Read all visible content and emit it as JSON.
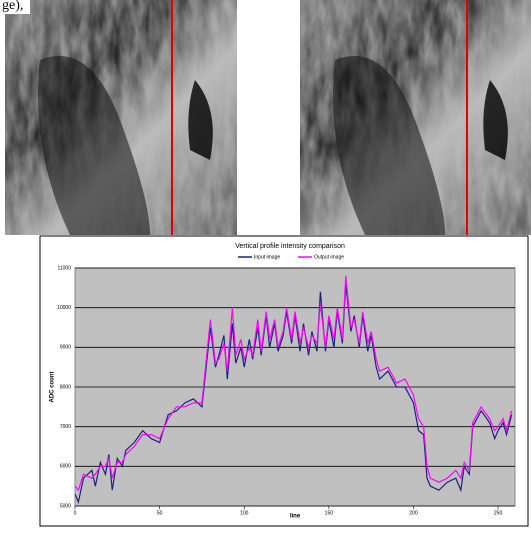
{
  "caption_fragment": "ge),",
  "chart_data": {
    "type": "line",
    "title": "Vertical profile intensity comparison",
    "x_label": "line",
    "y_label": "ADC count",
    "x": [
      0,
      2,
      5,
      10,
      12,
      15,
      18,
      20,
      22,
      25,
      28,
      30,
      35,
      40,
      45,
      50,
      55,
      60,
      65,
      70,
      75,
      80,
      83,
      85,
      88,
      90,
      93,
      95,
      98,
      100,
      103,
      105,
      108,
      110,
      113,
      115,
      118,
      120,
      123,
      125,
      128,
      130,
      133,
      135,
      138,
      140,
      143,
      145,
      148,
      150,
      153,
      155,
      158,
      160,
      163,
      165,
      168,
      170,
      173,
      175,
      178,
      180,
      185,
      190,
      195,
      200,
      203,
      206,
      208,
      210,
      215,
      220,
      225,
      228,
      230,
      233,
      235,
      240,
      245,
      248,
      250,
      253,
      255,
      258
    ],
    "series": [
      {
        "name": "Input image",
        "color": "#1a237e",
        "values": [
          5300,
          5100,
          5700,
          5900,
          5500,
          6100,
          5800,
          6300,
          5400,
          6200,
          6000,
          6400,
          6600,
          6900,
          6700,
          6600,
          7300,
          7400,
          7600,
          7700,
          7500,
          9500,
          8500,
          8800,
          9300,
          8200,
          9600,
          8600,
          9000,
          8500,
          9200,
          8700,
          9500,
          8800,
          9800,
          9000,
          9600,
          8900,
          9300,
          9900,
          9100,
          9800,
          8900,
          9600,
          8800,
          9400,
          8900,
          10400,
          8900,
          9700,
          9000,
          9900,
          9100,
          10600,
          9400,
          9800,
          9000,
          9800,
          8900,
          9300,
          8500,
          8200,
          8400,
          8000,
          8000,
          7600,
          6900,
          6800,
          5700,
          5500,
          5400,
          5600,
          5700,
          5400,
          6000,
          5800,
          7000,
          7400,
          7100,
          6700,
          6900,
          7100,
          6800,
          7300
        ]
      },
      {
        "name": "Output image",
        "color": "#ff00ff",
        "values": [
          5500,
          5400,
          5800,
          5700,
          5800,
          6000,
          6000,
          6200,
          5700,
          6100,
          6100,
          6300,
          6500,
          6800,
          6800,
          6700,
          7200,
          7500,
          7500,
          7600,
          7600,
          9700,
          8600,
          8700,
          9100,
          8400,
          10000,
          8800,
          9200,
          8700,
          9000,
          8800,
          9700,
          8900,
          9900,
          9200,
          9700,
          9000,
          9400,
          10000,
          9200,
          9900,
          9100,
          9500,
          9000,
          9300,
          9100,
          10100,
          9000,
          9800,
          9200,
          10000,
          9200,
          10800,
          9500,
          9700,
          9100,
          9900,
          9100,
          9400,
          8700,
          8400,
          8500,
          8100,
          8200,
          7800,
          7200,
          7000,
          6000,
          5700,
          5600,
          5700,
          5900,
          5700,
          6100,
          5900,
          7100,
          7500,
          7200,
          6900,
          7000,
          7200,
          6900,
          7400
        ]
      }
    ],
    "xlim": [
      0,
      260
    ],
    "xticks": [
      0,
      50,
      100,
      150,
      200,
      250
    ],
    "ylim": [
      5000,
      11000
    ],
    "yticks": [
      5000,
      6000,
      7000,
      8000,
      9000,
      10000,
      11000
    ],
    "grid": true,
    "plot_background": "#c0c0c0"
  }
}
